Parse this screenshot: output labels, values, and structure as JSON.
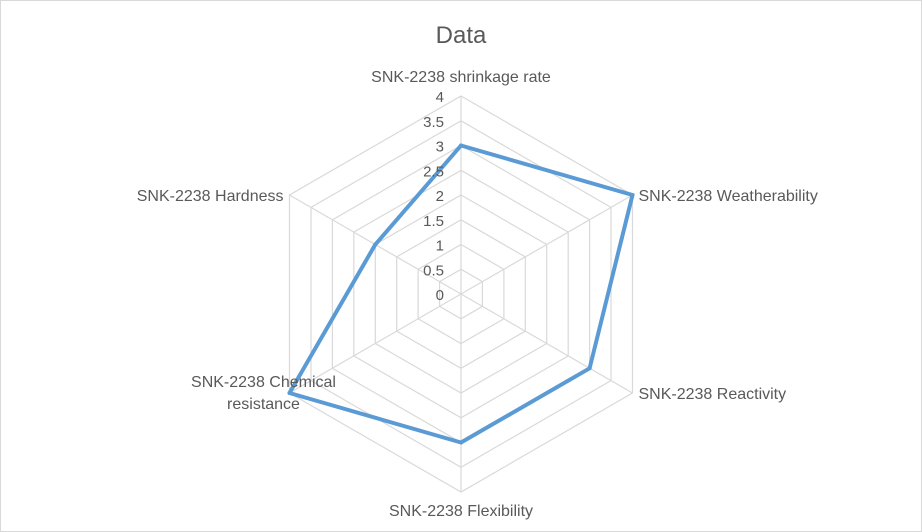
{
  "chart_data": {
    "type": "radar",
    "title": "Data",
    "categories": [
      "SNK-2238 shrinkage rate",
      "SNK-2238 Weatherability",
      "SNK-2238 Reactivity",
      "SNK-2238 Flexibility",
      "SNK-2238 Chemical resistance",
      "SNK-2238 Hardness"
    ],
    "ticks": [
      "0",
      "0.5",
      "1",
      "1.5",
      "2",
      "2.5",
      "3",
      "3.5",
      "4"
    ],
    "rmax": 4,
    "grid": true,
    "series": [
      {
        "values": [
          3,
          4,
          3,
          3,
          4,
          2
        ],
        "color": "#5b9bd5"
      }
    ]
  }
}
